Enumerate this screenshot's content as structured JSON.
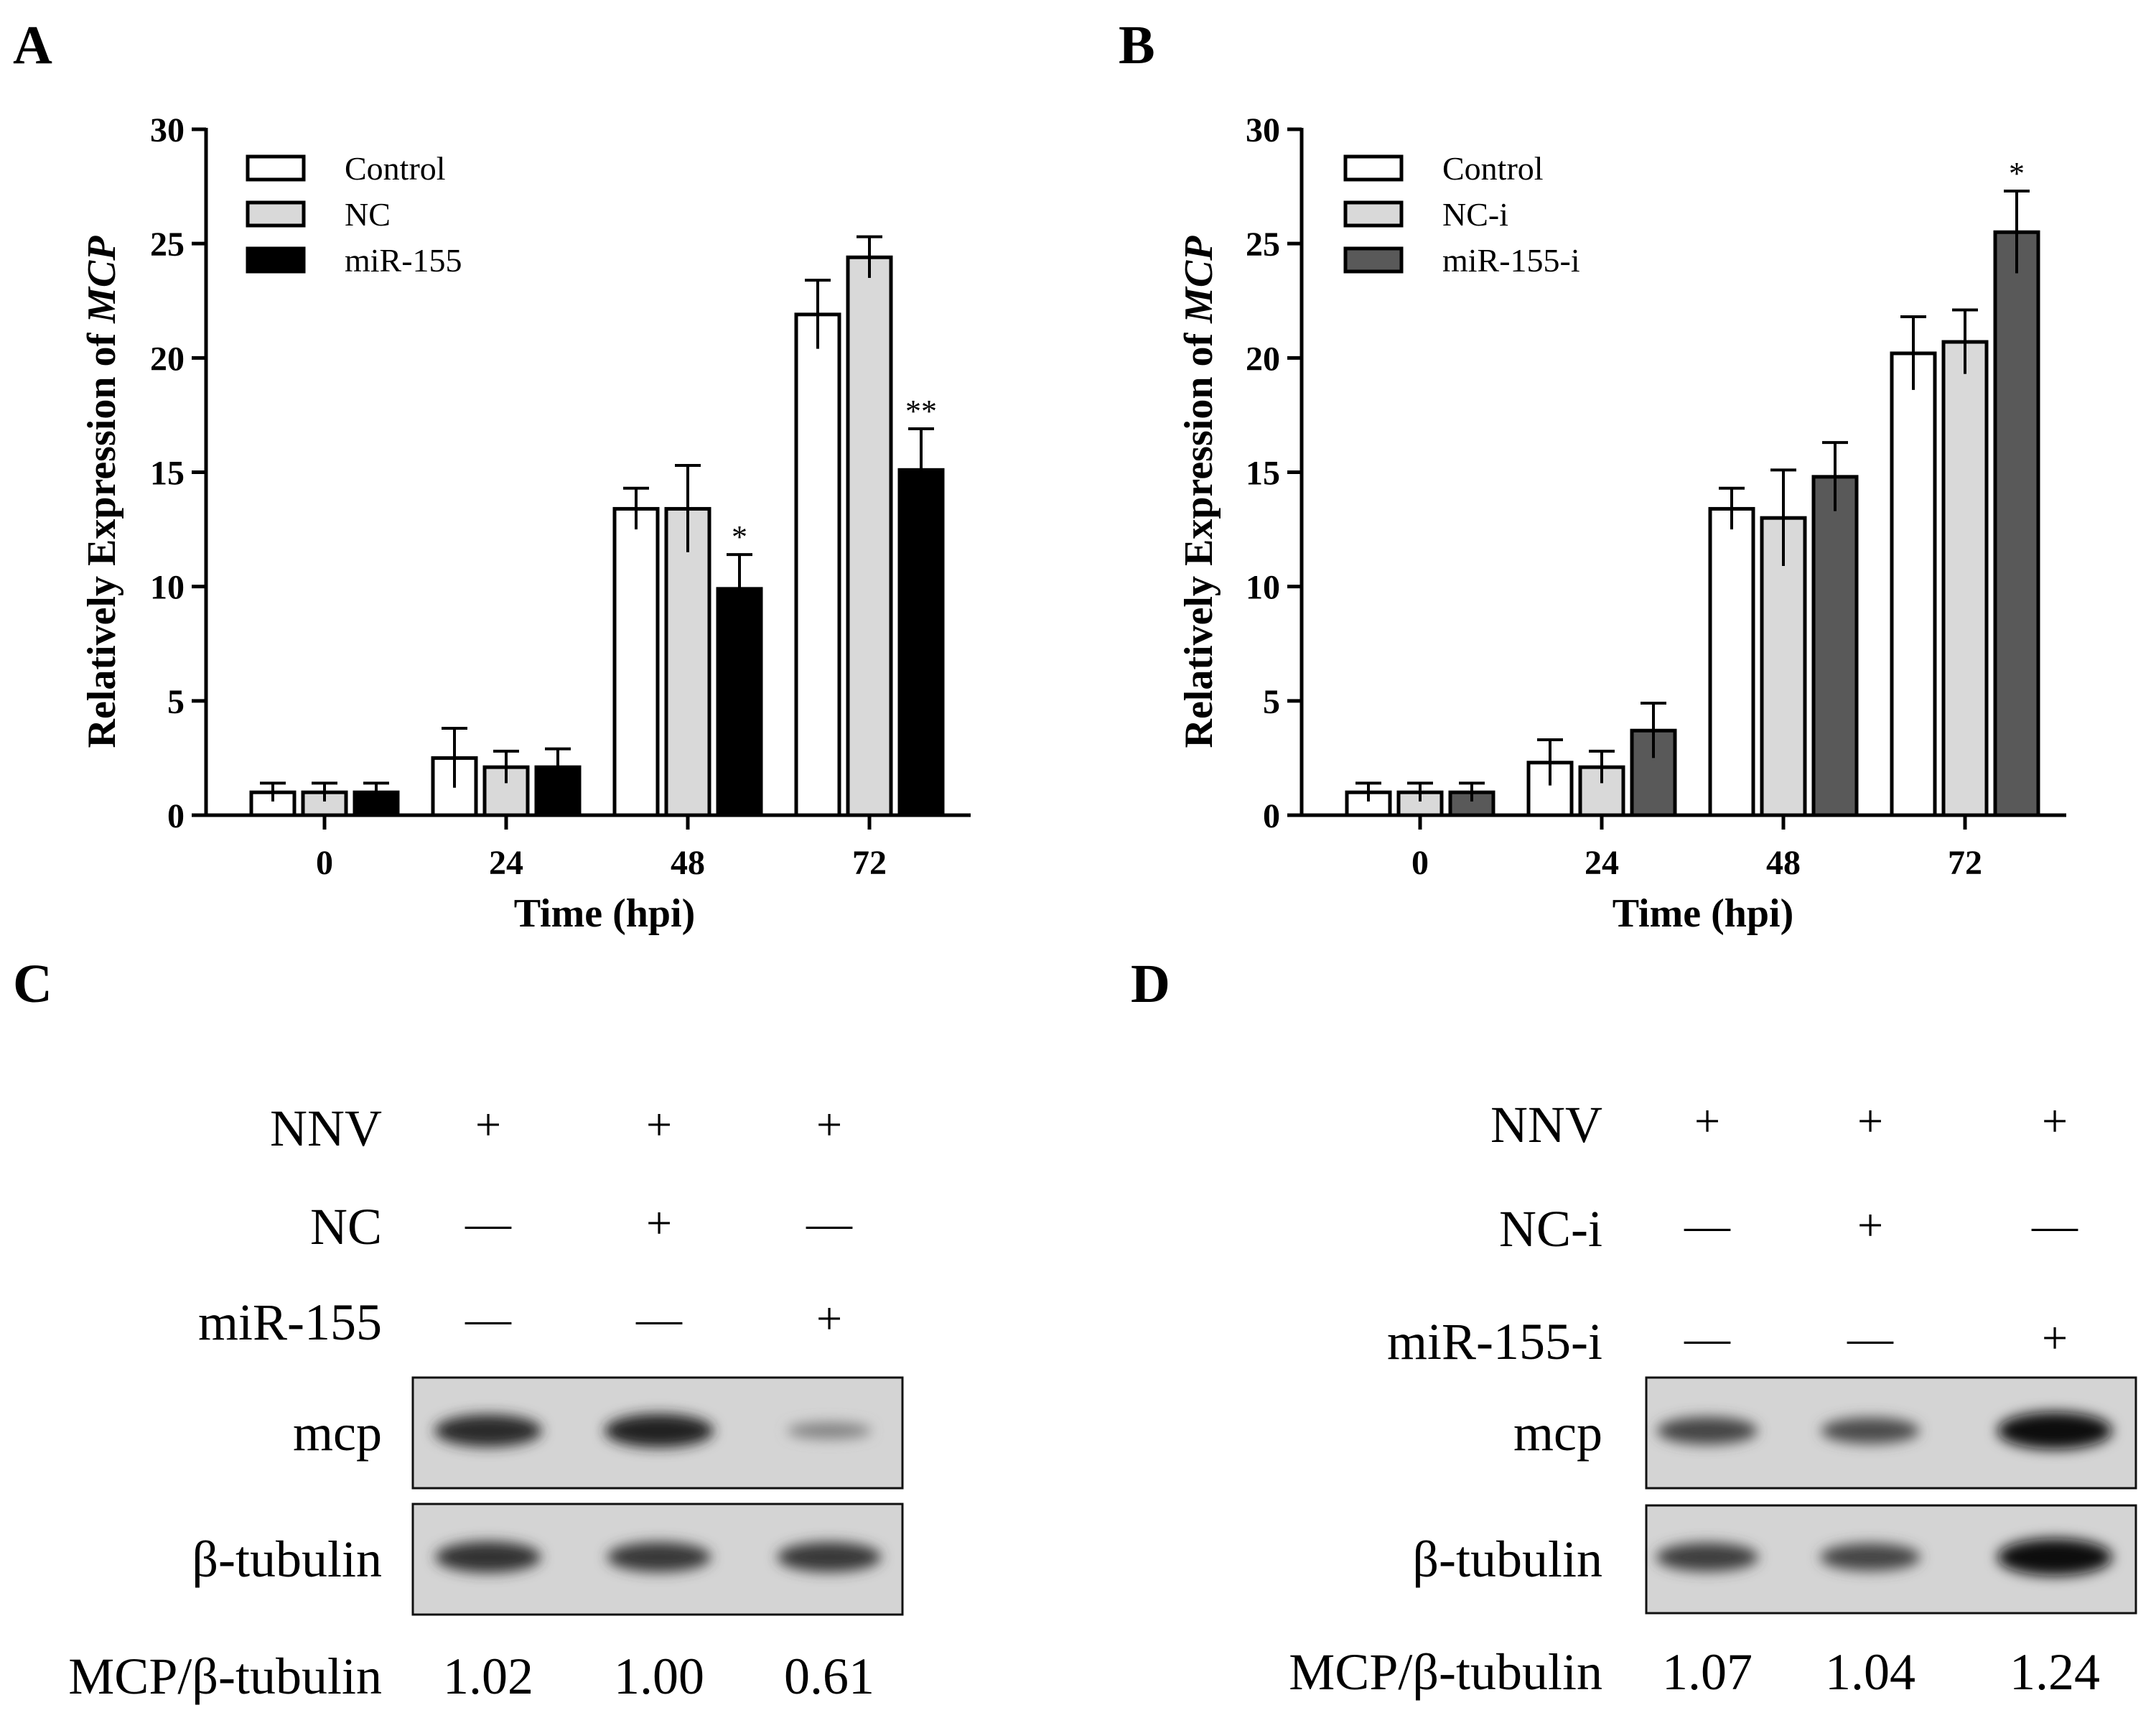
{
  "panel_letters": {
    "a": "A",
    "b": "B",
    "c": "C",
    "d": "D"
  },
  "colors": {
    "control": "#ffffff",
    "nc": "#d9d9d9",
    "mir155": "#000000",
    "mir155i": "#595959"
  },
  "chart_data": [
    {
      "type": "bar",
      "panel": "A",
      "xlabel": "Time (hpi)",
      "ylabel_prefix": "Relatively Expression of ",
      "ylabel_italic": "MCP",
      "ylim": [
        0,
        30
      ],
      "yticks": [
        "0",
        "5",
        "10",
        "15",
        "20",
        "25",
        "30"
      ],
      "categories": [
        "0",
        "24",
        "48",
        "72"
      ],
      "series": [
        {
          "name": "Control",
          "color": "#ffffff",
          "values": [
            1.0,
            2.5,
            13.4,
            21.9
          ],
          "errors": [
            0.4,
            1.3,
            0.9,
            1.5
          ]
        },
        {
          "name": "NC",
          "color": "#d9d9d9",
          "values": [
            1.0,
            2.1,
            13.4,
            24.4
          ],
          "errors": [
            0.4,
            0.7,
            1.9,
            0.9
          ]
        },
        {
          "name": "miR-155",
          "color": "#000000",
          "values": [
            1.0,
            2.1,
            9.9,
            15.1
          ],
          "errors": [
            0.4,
            0.8,
            1.5,
            1.8
          ]
        }
      ],
      "annotations": [
        {
          "text": "*",
          "category": "48",
          "series": "miR-155"
        },
        {
          "text": "**",
          "category": "72",
          "series": "miR-155"
        }
      ]
    },
    {
      "type": "bar",
      "panel": "B",
      "xlabel": "Time (hpi)",
      "ylabel_prefix": "Relatively Expression of ",
      "ylabel_italic": "MCP",
      "ylim": [
        0,
        30
      ],
      "yticks": [
        "0",
        "5",
        "10",
        "15",
        "20",
        "25",
        "30"
      ],
      "categories": [
        "0",
        "24",
        "48",
        "72"
      ],
      "series": [
        {
          "name": "Control",
          "color": "#ffffff",
          "values": [
            1.0,
            2.3,
            13.4,
            20.2
          ],
          "errors": [
            0.4,
            1.0,
            0.9,
            1.6
          ]
        },
        {
          "name": "NC-i",
          "color": "#d9d9d9",
          "values": [
            1.0,
            2.1,
            13.0,
            20.7
          ],
          "errors": [
            0.4,
            0.7,
            2.1,
            1.4
          ]
        },
        {
          "name": "miR-155-i",
          "color": "#595959",
          "values": [
            1.0,
            3.7,
            14.8,
            25.5
          ],
          "errors": [
            0.4,
            1.2,
            1.5,
            1.8
          ]
        }
      ],
      "annotations": [
        {
          "text": "*",
          "category": "72",
          "series": "miR-155-i"
        }
      ]
    }
  ],
  "blot_c": {
    "rows": [
      {
        "label": "NNV",
        "signs": [
          "+",
          "+",
          "+"
        ]
      },
      {
        "label": "NC",
        "signs": [
          "—",
          "+",
          "—"
        ]
      },
      {
        "label": "miR-155",
        "signs": [
          "—",
          "—",
          "+"
        ]
      }
    ],
    "band_labels": [
      "mcp",
      "β-tubulin"
    ],
    "ratio_label": "MCP/β-tubulin",
    "ratios": [
      "1.02",
      "1.00",
      "0.61"
    ],
    "mcp_intensity": [
      0.8,
      0.85,
      0.15
    ],
    "tubulin_intensity": [
      0.75,
      0.7,
      0.7
    ]
  },
  "blot_d": {
    "rows": [
      {
        "label": "NNV",
        "signs": [
          "+",
          "+",
          "+"
        ]
      },
      {
        "label": "NC-i",
        "signs": [
          "—",
          "+",
          "—"
        ]
      },
      {
        "label": "miR-155-i",
        "signs": [
          "—",
          "—",
          "+"
        ]
      }
    ],
    "band_labels": [
      "mcp",
      "β-tubulin"
    ],
    "ratio_label": "MCP/β-tubulin",
    "ratios": [
      "1.07",
      "1.04",
      "1.24"
    ],
    "mcp_intensity": [
      0.6,
      0.55,
      1.0
    ],
    "tubulin_intensity": [
      0.65,
      0.6,
      1.0
    ]
  }
}
